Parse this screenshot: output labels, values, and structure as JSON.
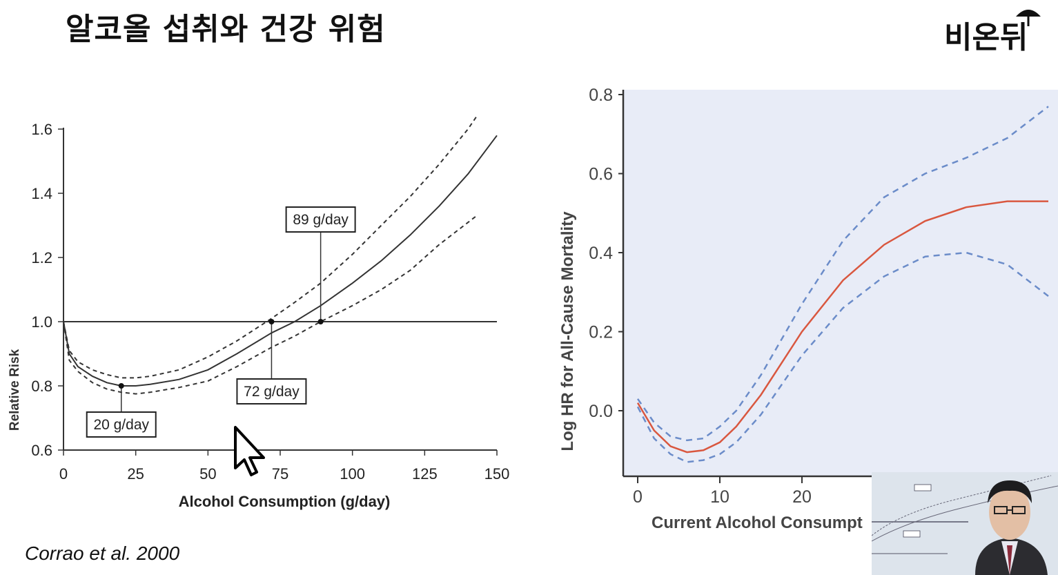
{
  "slide": {
    "title": "알코올 섭취와 건강 위험",
    "logo": "비온뒤",
    "citation": "Corrao et al. 2000"
  },
  "colors": {
    "left_line": "#333333",
    "right_bg": "#e8ecf7",
    "right_estimate": "#d9573f",
    "right_ci": "#6b8cc9"
  },
  "chart_data": [
    {
      "type": "line",
      "xlabel": "Alcohol Consumption (g/day)",
      "ylabel": "Relative Risk",
      "xlim": [
        0,
        150
      ],
      "ylim": [
        0.6,
        1.6
      ],
      "xticks": [
        "0",
        "25",
        "50",
        "75",
        "100",
        "125",
        "150"
      ],
      "yticks": [
        "0.6",
        "0.8",
        "1.0",
        "1.2",
        "1.4",
        "1.6"
      ],
      "reference_line": 1.0,
      "series": [
        {
          "name": "Relative Risk",
          "style": "solid",
          "x": [
            0,
            2,
            5,
            10,
            15,
            20,
            25,
            30,
            40,
            50,
            60,
            72,
            80,
            89,
            100,
            110,
            120,
            130,
            140,
            150
          ],
          "values": [
            1.0,
            0.9,
            0.86,
            0.83,
            0.81,
            0.8,
            0.8,
            0.805,
            0.82,
            0.85,
            0.9,
            0.965,
            1.0,
            1.05,
            1.12,
            1.19,
            1.27,
            1.36,
            1.46,
            1.58
          ]
        },
        {
          "name": "Upper 95% CI",
          "style": "dashed",
          "x": [
            0,
            2,
            5,
            10,
            15,
            20,
            25,
            30,
            40,
            50,
            60,
            72,
            80,
            89,
            100,
            110,
            120,
            130,
            140,
            143
          ],
          "values": [
            1.0,
            0.91,
            0.875,
            0.85,
            0.835,
            0.825,
            0.825,
            0.83,
            0.85,
            0.89,
            0.94,
            1.01,
            1.06,
            1.12,
            1.21,
            1.3,
            1.39,
            1.49,
            1.6,
            1.64
          ]
        },
        {
          "name": "Lower 95% CI",
          "style": "dashed",
          "x": [
            0,
            2,
            5,
            10,
            15,
            20,
            25,
            30,
            40,
            50,
            60,
            72,
            80,
            89,
            100,
            110,
            120,
            130,
            143
          ],
          "values": [
            1.0,
            0.88,
            0.845,
            0.81,
            0.79,
            0.78,
            0.775,
            0.78,
            0.795,
            0.815,
            0.86,
            0.92,
            0.955,
            1.0,
            1.05,
            1.1,
            1.16,
            1.24,
            1.33
          ]
        }
      ],
      "annotations": [
        {
          "label": "20 g/day",
          "x": 20,
          "y": 0.8
        },
        {
          "label": "72 g/day",
          "x": 72,
          "y": 1.0
        },
        {
          "label": "89 g/day",
          "x": 89,
          "y": 1.0
        }
      ]
    },
    {
      "type": "line",
      "xlabel": "Current Alcohol Consumpt",
      "ylabel": "Log HR for All-Cause Mortality",
      "xlim": [
        0,
        50
      ],
      "ylim": [
        -0.15,
        0.8
      ],
      "xticks": [
        "0",
        "10",
        "20"
      ],
      "yticks": [
        "0.0",
        "0.2",
        "0.4",
        "0.6",
        "0.8"
      ],
      "series": [
        {
          "name": "Log HR",
          "style": "solid",
          "x": [
            0,
            2,
            4,
            6,
            8,
            10,
            12,
            15,
            20,
            25,
            30,
            35,
            40,
            45,
            50
          ],
          "values": [
            0.02,
            -0.05,
            -0.09,
            -0.105,
            -0.1,
            -0.08,
            -0.04,
            0.04,
            0.2,
            0.33,
            0.42,
            0.48,
            0.515,
            0.53,
            0.53
          ]
        },
        {
          "name": "Upper 95% CI",
          "style": "dashed",
          "x": [
            0,
            2,
            4,
            6,
            8,
            10,
            12,
            15,
            20,
            25,
            30,
            35,
            40,
            45,
            50
          ],
          "values": [
            0.03,
            -0.03,
            -0.065,
            -0.075,
            -0.07,
            -0.04,
            0.0,
            0.09,
            0.27,
            0.43,
            0.54,
            0.6,
            0.64,
            0.69,
            0.77
          ]
        },
        {
          "name": "Lower 95% CI",
          "style": "dashed",
          "x": [
            0,
            2,
            4,
            6,
            8,
            10,
            12,
            15,
            20,
            25,
            30,
            35,
            40,
            45,
            50
          ],
          "values": [
            0.01,
            -0.07,
            -0.11,
            -0.13,
            -0.125,
            -0.11,
            -0.08,
            -0.01,
            0.14,
            0.26,
            0.34,
            0.39,
            0.4,
            0.37,
            0.29
          ]
        }
      ]
    }
  ]
}
